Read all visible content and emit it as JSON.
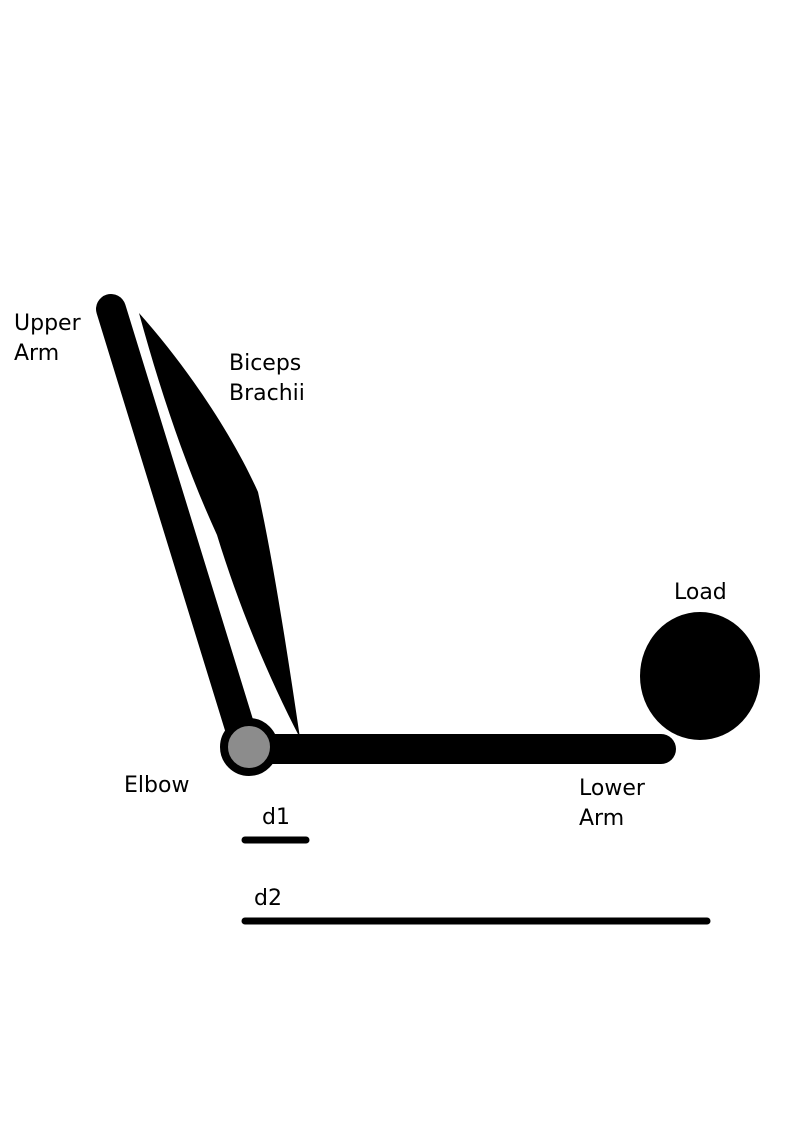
{
  "labels": {
    "upper_arm": [
      "Upper",
      "Arm"
    ],
    "biceps": [
      "Biceps",
      "Brachii"
    ],
    "load": "Load",
    "elbow": "Elbow",
    "lower_arm": [
      "Lower",
      "Arm"
    ],
    "d1": "d1",
    "d2": "d2"
  },
  "colors": {
    "ink": "#000000",
    "joint": "#8c8c8c",
    "background": "#ffffff"
  }
}
